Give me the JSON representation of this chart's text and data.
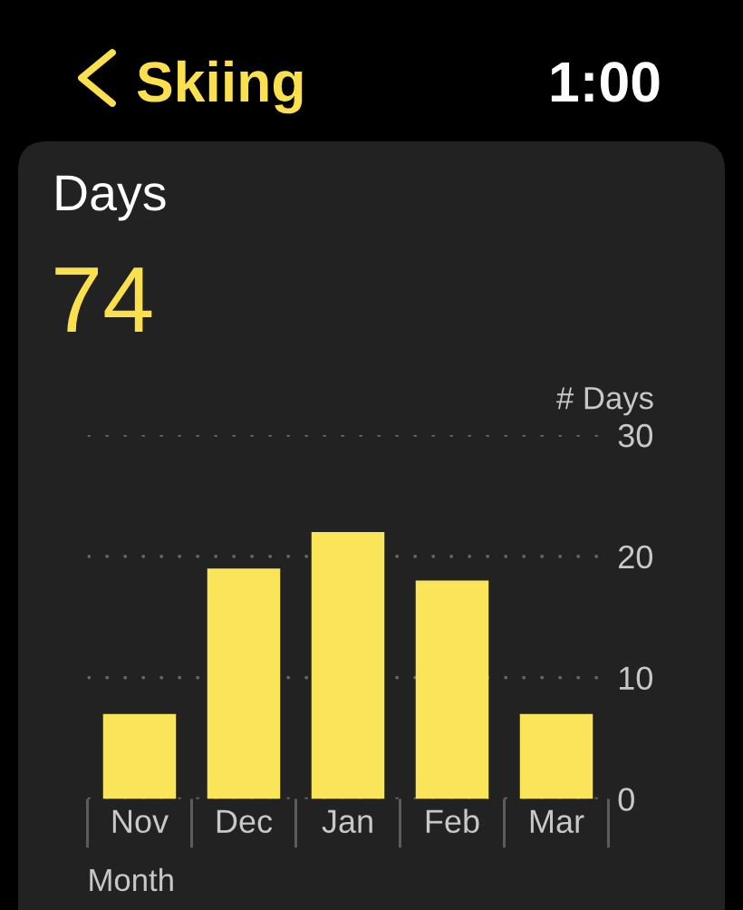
{
  "chart_data": {
    "type": "bar",
    "title": "Days",
    "subtitle": "74",
    "annotations": [
      "Skiing",
      "1:00"
    ],
    "categories": [
      "Nov",
      "Dec",
      "Jan",
      "Feb",
      "Mar"
    ],
    "values": [
      7,
      19,
      22,
      18,
      7
    ],
    "color": "#fae55a",
    "ylim": [
      0,
      30
    ],
    "yticks": [
      0,
      10,
      20,
      30
    ],
    "ylabel": "# Days",
    "xlabel": "Month",
    "grid": "y"
  }
}
